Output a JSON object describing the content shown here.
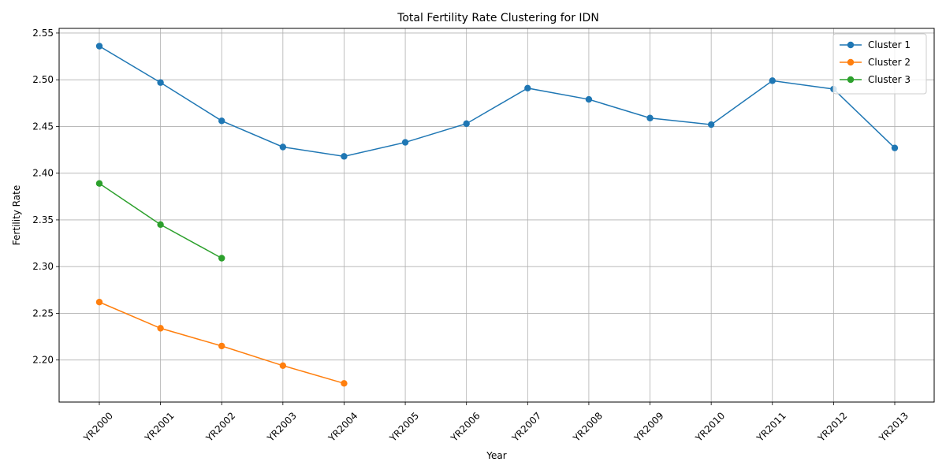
{
  "chart_data": {
    "type": "line",
    "title": "Total Fertility Rate Clustering for IDN",
    "xlabel": "Year",
    "ylabel": "Fertility Rate",
    "categories": [
      "YR2000",
      "YR2001",
      "YR2002",
      "YR2003",
      "YR2004",
      "YR2005",
      "YR2006",
      "YR2007",
      "YR2008",
      "YR2009",
      "YR2010",
      "YR2011",
      "YR2012",
      "YR2013"
    ],
    "yticks": [
      "2.20",
      "2.25",
      "2.30",
      "2.35",
      "2.40",
      "2.45",
      "2.50",
      "2.55"
    ],
    "ylim": [
      2.155,
      2.555
    ],
    "grid": true,
    "legend_position": "top-right",
    "series": [
      {
        "name": "Cluster 1",
        "color": "#1f77b4",
        "values": [
          2.536,
          2.497,
          2.456,
          2.428,
          2.418,
          2.433,
          2.453,
          2.491,
          2.479,
          2.459,
          2.452,
          2.499,
          2.49,
          2.427
        ]
      },
      {
        "name": "Cluster 2",
        "color": "#ff7f0e",
        "values": [
          2.262,
          2.234,
          2.215,
          2.194,
          2.175,
          null,
          null,
          null,
          null,
          null,
          null,
          null,
          null,
          null
        ]
      },
      {
        "name": "Cluster 3",
        "color": "#2ca02c",
        "values": [
          2.389,
          2.345,
          2.309,
          null,
          null,
          null,
          null,
          null,
          null,
          null,
          null,
          null,
          null,
          null
        ]
      }
    ]
  }
}
